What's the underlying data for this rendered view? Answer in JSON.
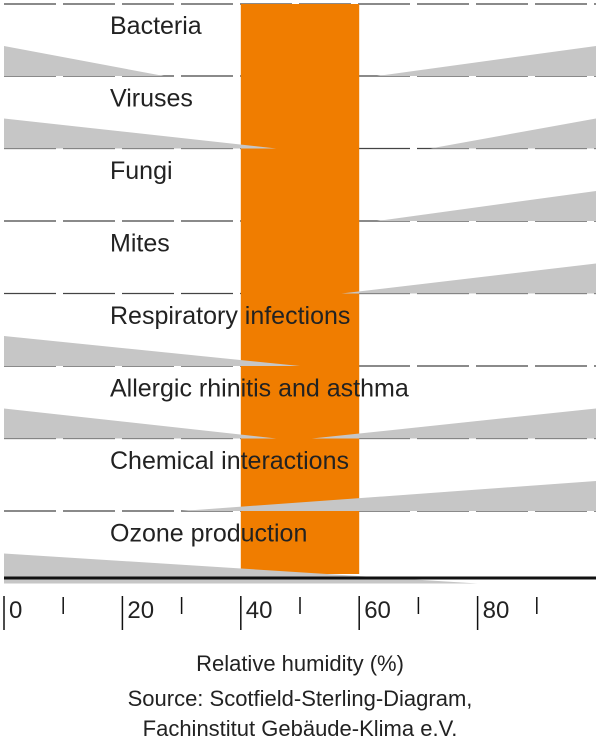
{
  "chart_data": {
    "type": "bar",
    "title": "",
    "xlabel": "Relative humidity (%)",
    "source_line1": "Source: Scotfield-Sterling-Diagram,",
    "source_line2": "Fachinstitut Gebäude-Klima e.V.",
    "xlim": [
      0,
      100
    ],
    "x_ticks": [
      0,
      20,
      40,
      60,
      80
    ],
    "optimal_range": [
      40,
      60
    ],
    "colors": {
      "band": "#f07d00",
      "wedge": "#c6c6c6",
      "axis": "#111111",
      "grid": "#444444"
    },
    "series": [
      {
        "name": "Bacteria",
        "low": {
          "from": 0,
          "to": 27,
          "max": 5
        },
        "high": {
          "from": 63,
          "to": 100,
          "max": 5
        }
      },
      {
        "name": "Viruses",
        "low": {
          "from": 0,
          "to": 46,
          "max": 5
        },
        "high": {
          "from": 72,
          "to": 100,
          "max": 5
        }
      },
      {
        "name": "Fungi",
        "low": null,
        "high": {
          "from": 63,
          "to": 100,
          "max": 5
        }
      },
      {
        "name": "Mites",
        "low": null,
        "high": {
          "from": 57,
          "to": 100,
          "max": 5
        }
      },
      {
        "name": "Respiratory infections",
        "low": {
          "from": 0,
          "to": 50,
          "max": 5
        },
        "high": null
      },
      {
        "name": "Allergic rhinitis and asthma",
        "low": {
          "from": 0,
          "to": 46,
          "max": 5
        },
        "high": {
          "from": 52,
          "to": 100,
          "max": 5
        }
      },
      {
        "name": "Chemical interactions",
        "low": null,
        "high": {
          "from": 30,
          "to": 100,
          "max": 5
        }
      },
      {
        "name": "Ozone production",
        "low": {
          "from": 0,
          "to": 80,
          "max": 5
        },
        "high": null
      }
    ]
  }
}
